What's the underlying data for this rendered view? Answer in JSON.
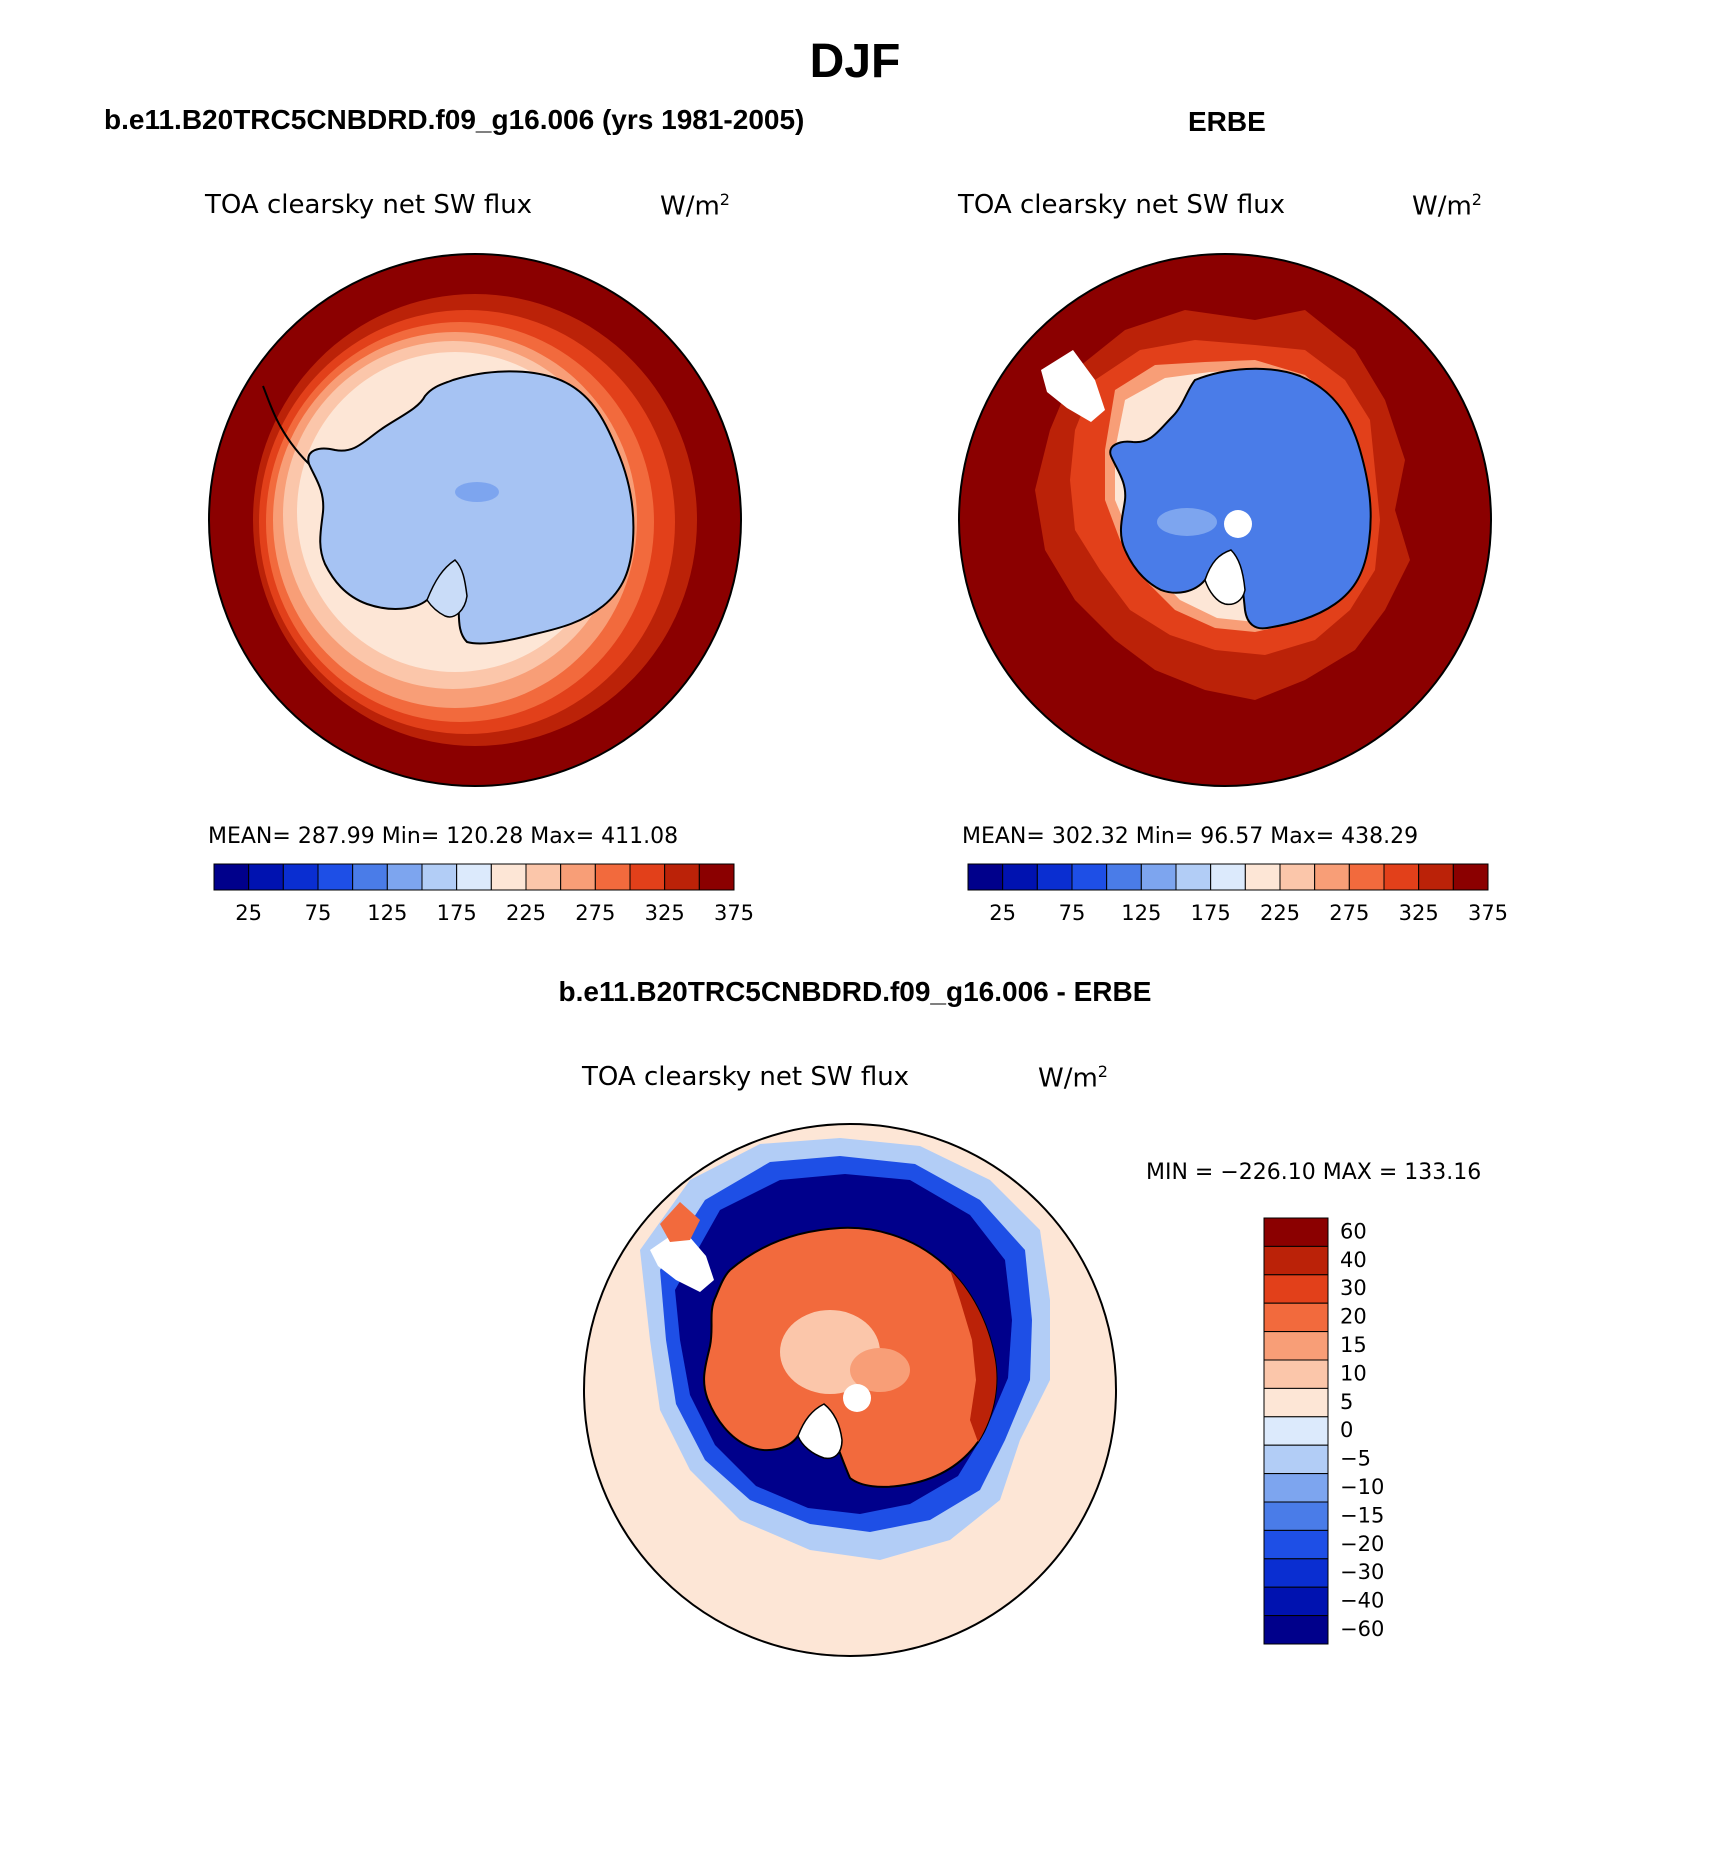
{
  "figure": {
    "title": "DJF"
  },
  "panels": [
    {
      "name": "model",
      "title": "b.e11.B20TRC5CNBDRD.f09_g16.006 (yrs 1981-2005)",
      "variable": "TOA clearsky net SW flux",
      "units": "W/m",
      "units_sup": "2",
      "stats": "MEAN= 287.99   Min= 120.28   Max= 411.08"
    },
    {
      "name": "obs",
      "title": "ERBE",
      "variable": "TOA clearsky net SW flux",
      "units": "W/m",
      "units_sup": "2",
      "stats": "MEAN= 302.32   Min=   96.57   Max= 438.29"
    },
    {
      "name": "diff",
      "title": "b.e11.B20TRC5CNBDRD.f09_g16.006 - ERBE",
      "variable": "TOA clearsky net SW flux",
      "units": "W/m",
      "units_sup": "2",
      "stats": "MIN = −226.10 MAX = 133.16"
    }
  ],
  "chart_data": [
    {
      "type": "heatmap",
      "projection": "south polar stereographic",
      "panel": "model",
      "colorbar": {
        "orientation": "horizontal",
        "levels": [
          25,
          50,
          75,
          100,
          125,
          150,
          175,
          200,
          225,
          250,
          275,
          300,
          325,
          350,
          375
        ],
        "tick_labels": [
          "25",
          "75",
          "125",
          "175",
          "225",
          "275",
          "325",
          "375"
        ],
        "colors": [
          "#00008b",
          "#0012b0",
          "#0a2ed1",
          "#1e4fe6",
          "#4a7ce8",
          "#7da5ef",
          "#b2cdf6",
          "#dceafc",
          "#fde6d6",
          "#fbc6aa",
          "#f89e77",
          "#f26a3d",
          "#e2401a",
          "#bb2208",
          "#8b0000"
        ]
      },
      "min": 120.28,
      "max": 411.08,
      "mean": 287.99
    },
    {
      "type": "heatmap",
      "projection": "south polar stereographic",
      "panel": "obs",
      "colorbar": {
        "orientation": "horizontal",
        "levels": [
          25,
          50,
          75,
          100,
          125,
          150,
          175,
          200,
          225,
          250,
          275,
          300,
          325,
          350,
          375
        ],
        "tick_labels": [
          "25",
          "75",
          "125",
          "175",
          "225",
          "275",
          "325",
          "375"
        ],
        "colors": [
          "#00008b",
          "#0012b0",
          "#0a2ed1",
          "#1e4fe6",
          "#4a7ce8",
          "#7da5ef",
          "#b2cdf6",
          "#dceafc",
          "#fde6d6",
          "#fbc6aa",
          "#f89e77",
          "#f26a3d",
          "#e2401a",
          "#bb2208",
          "#8b0000"
        ]
      },
      "min": 96.57,
      "max": 438.29,
      "mean": 302.32
    },
    {
      "type": "heatmap",
      "projection": "south polar stereographic",
      "panel": "diff",
      "colorbar": {
        "orientation": "vertical",
        "levels": [
          60,
          40,
          30,
          20,
          15,
          10,
          5,
          0,
          -5,
          -10,
          -15,
          -20,
          -30,
          -40,
          -60
        ],
        "tick_labels": [
          "60",
          "40",
          "30",
          "20",
          "15",
          "10",
          "5",
          "0",
          "−5",
          "−10",
          "−15",
          "−20",
          "−30",
          "−40",
          "−60"
        ],
        "colors": [
          "#8b0000",
          "#bb2208",
          "#e2401a",
          "#f26a3d",
          "#f89e77",
          "#fbc6aa",
          "#fde6d6",
          "#dceafc",
          "#b2cdf6",
          "#7da5ef",
          "#4a7ce8",
          "#1e4fe6",
          "#0a2ed1",
          "#0012b0",
          "#00008b"
        ]
      },
      "min": -226.1,
      "max": 133.16
    }
  ]
}
